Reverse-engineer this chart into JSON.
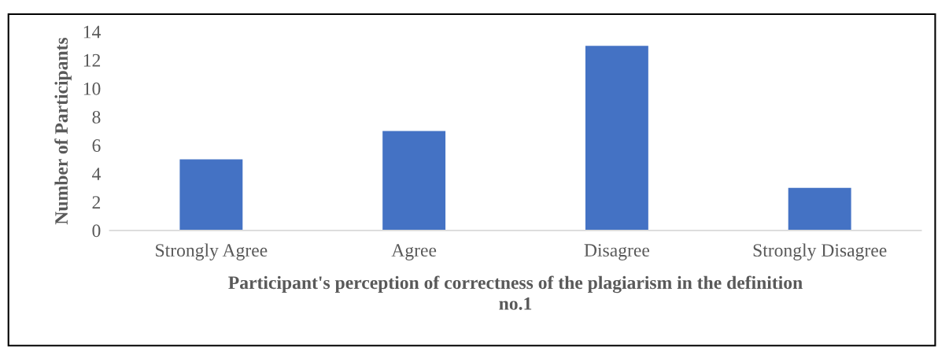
{
  "chart_data": {
    "type": "bar",
    "xlabel": "Participant's perception of correctness of the plagiarism in the definition\nno.1",
    "ylabel": "Number of Participants",
    "categories": [
      "Strongly Agree",
      "Agree",
      "Disagree",
      "Strongly Disagree"
    ],
    "values": [
      5,
      7,
      13,
      3
    ],
    "color": "#4472c4",
    "ylim": [
      0,
      14
    ],
    "yticks": [
      0,
      2,
      4,
      6,
      8,
      10,
      12,
      14
    ],
    "grid": false,
    "legend": false
  }
}
